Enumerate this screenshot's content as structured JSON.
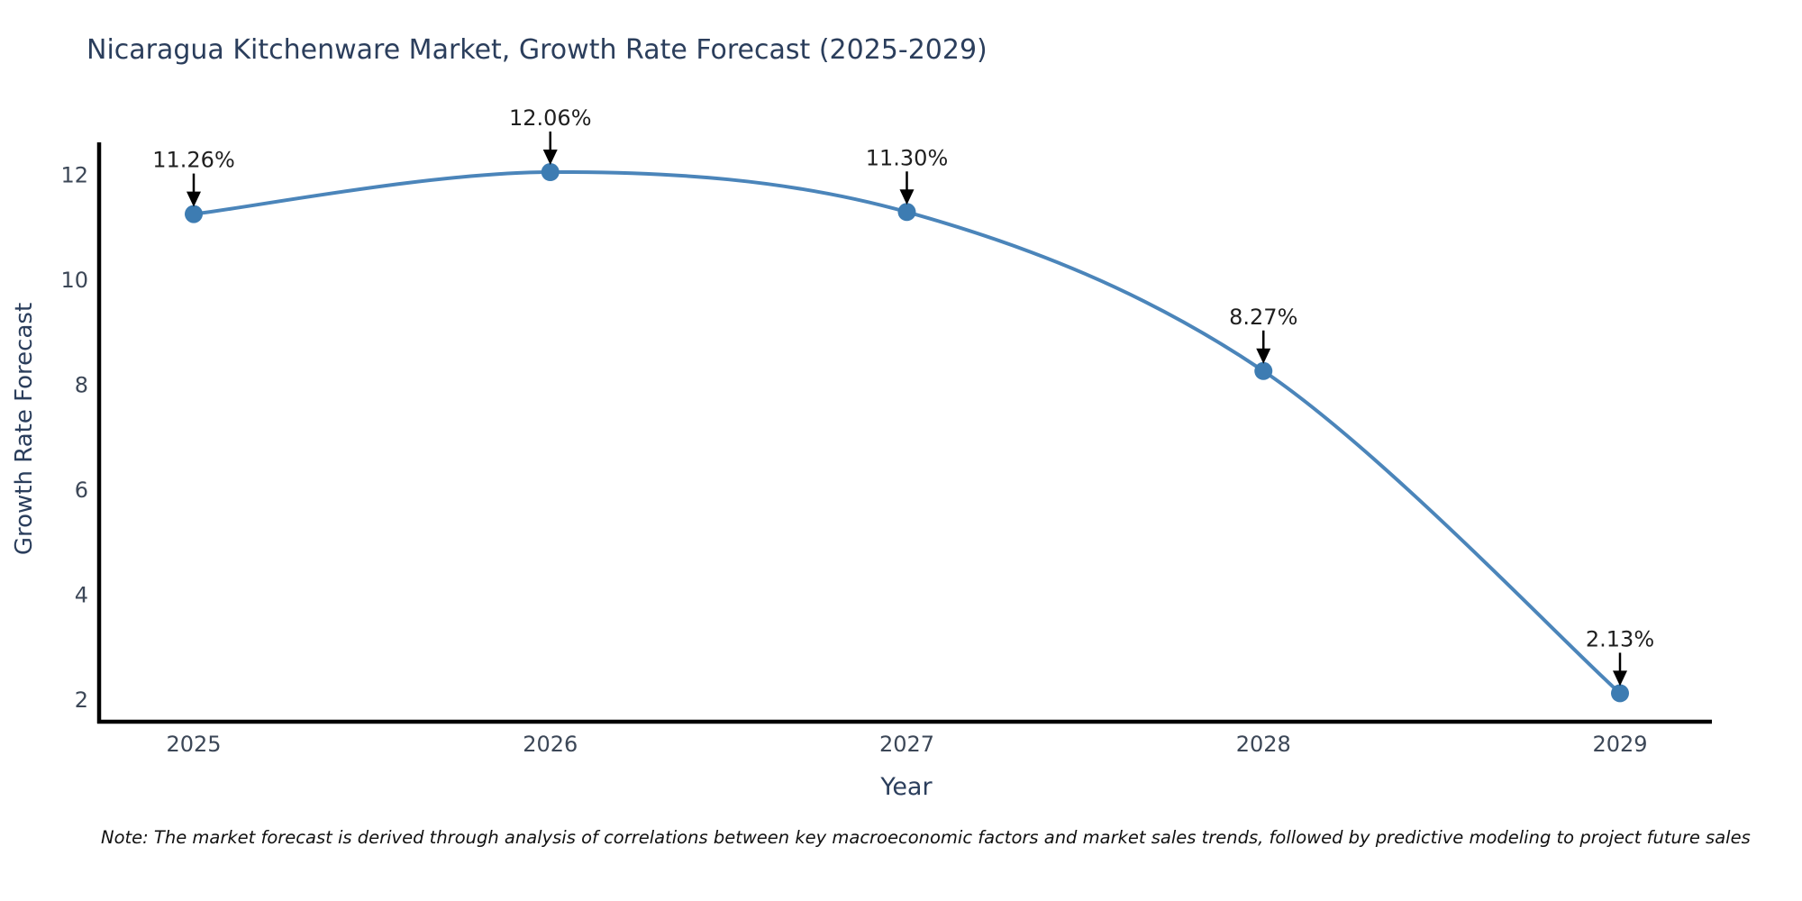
{
  "chart_data": {
    "type": "line",
    "title": "Nicaragua Kitchenware Market, Growth Rate Forecast (2025-2029)",
    "xlabel": "Year",
    "ylabel": "Growth Rate Forecast",
    "x": [
      2025,
      2026,
      2027,
      2028,
      2029
    ],
    "series": [
      {
        "name": "Growth Rate Forecast (%)",
        "values": [
          11.26,
          12.06,
          11.3,
          8.27,
          2.13
        ]
      }
    ],
    "point_labels": [
      "11.26%",
      "12.06%",
      "11.30%",
      "8.27%",
      "2.13%"
    ],
    "xticklabels": [
      "2025",
      "2026",
      "2027",
      "2028",
      "2029"
    ],
    "yticks": [
      2,
      4,
      6,
      8,
      10,
      12
    ],
    "ylim": [
      1.55,
      12.63
    ],
    "grid": false,
    "legend": "none",
    "colors": {
      "line": "#4b85ba",
      "marker": "#3d7cb2",
      "axis": "#000000",
      "annotation_text": "#1f1f1f",
      "tick_label": "#3c4757",
      "title": "#2b3e5c"
    }
  },
  "note": "Note: The market forecast is derived through analysis of correlations between key macroeconomic factors and market sales trends, followed by predictive modeling to project future sales"
}
